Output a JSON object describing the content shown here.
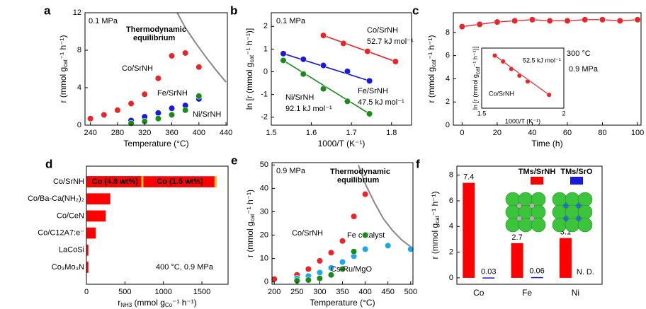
{
  "chart_data": [
    {
      "type": "scatter",
      "panel_label": "a",
      "xlabel": "Temperature (°C)",
      "ylabel": [
        "r (mmol g",
        "cat",
        "⁻¹ h⁻¹)"
      ],
      "xlim": [
        232,
        442
      ],
      "xticks": [
        240,
        280,
        320,
        360,
        400,
        440
      ],
      "ylim": [
        0,
        12
      ],
      "yticks": [
        0,
        4,
        8,
        12
      ],
      "annotations": [
        "0.1 MPa"
      ],
      "series": [
        {
          "name": "Co/SrNH",
          "color": "#e8262a",
          "x": [
            240,
            260,
            280,
            300,
            320,
            340,
            360,
            380,
            400
          ],
          "values": [
            0.7,
            1.1,
            1.6,
            2.3,
            3.3,
            5.0,
            7.4,
            7.7,
            6.2
          ]
        },
        {
          "name": "Fe/SrNH",
          "color": "#1a1adc",
          "x": [
            300,
            320,
            340,
            360,
            380,
            400
          ],
          "values": [
            0.5,
            0.9,
            1.3,
            1.8,
            2.1,
            2.8
          ]
        },
        {
          "name": "Ni/SrNH",
          "color": "#1a8a1a",
          "x": [
            300,
            320,
            340,
            360,
            380,
            400
          ],
          "values": [
            0.2,
            0.4,
            0.7,
            1.1,
            1.6,
            3.1
          ]
        },
        {
          "name": [
            "Thermodynamic",
            "equilibrium"
          ],
          "color": "#888888",
          "curve": true,
          "x": [
            368,
            380,
            395,
            410,
            425,
            440
          ],
          "values": [
            12,
            10.4,
            8.8,
            7.3,
            5.9,
            4.6
          ]
        }
      ]
    },
    {
      "type": "fit",
      "panel_label": "b",
      "xlabel": "1000/T (K⁻¹)",
      "ylabel": [
        "ln [r (mmol g",
        "cat",
        "⁻¹ h⁻¹)]"
      ],
      "xlim": [
        1.5,
        1.85
      ],
      "xticks": [
        1.5,
        1.6,
        1.7,
        1.8
      ],
      "ylim": [
        -2.35,
        2.6
      ],
      "yticks": [
        -2,
        -1,
        0,
        1,
        2
      ],
      "annotations": [
        "0.1 MPa"
      ],
      "series": [
        {
          "name": "Co/SrNH",
          "energy": "52.7 kJ mol⁻¹",
          "color": "#e8262a",
          "x": [
            1.63,
            1.68,
            1.74,
            1.81
          ],
          "values": [
            1.6,
            1.25,
            0.9,
            0.45
          ]
        },
        {
          "name": "Fe/SrNH",
          "energy": "47.5 kJ mol⁻¹",
          "color": "#1a1adc",
          "x": [
            1.53,
            1.58,
            1.63,
            1.69,
            1.745
          ],
          "values": [
            0.8,
            0.55,
            0.28,
            0.02,
            -0.4
          ]
        },
        {
          "name": "Ni/SrNH",
          "energy": "92.1 kJ mol⁻¹",
          "color": "#1a8a1a",
          "x": [
            1.53,
            1.58,
            1.63,
            1.69,
            1.745
          ],
          "values": [
            0.5,
            -0.1,
            -0.75,
            -1.3,
            -1.85
          ]
        }
      ]
    },
    {
      "type": "line",
      "panel_label": "c",
      "xlabel": "Time (h)",
      "ylabel": [
        "r (mmol g",
        "cat",
        "⁻¹ h⁻¹)"
      ],
      "xlim": [
        -5,
        102
      ],
      "xticks": [
        0,
        20,
        40,
        60,
        80,
        100
      ],
      "ylim": [
        0,
        9.7
      ],
      "yticks": [
        0,
        2,
        4,
        6,
        8
      ],
      "annotations": [
        "300 °C",
        "0.9 MPa"
      ],
      "series": [
        {
          "name": "Co/SrNH",
          "color": "#e8262a",
          "x": [
            0,
            10,
            20,
            30,
            40,
            50,
            60,
            70,
            80,
            90,
            100
          ],
          "values": [
            8.5,
            8.7,
            8.9,
            9.0,
            9.1,
            9.0,
            9.0,
            9.1,
            9.1,
            9.0,
            9.1
          ]
        }
      ],
      "inset": {
        "xlabel": "1000/T (K⁻¹)",
        "ylabel": [
          "ln [r (mmol g",
          "cat",
          "⁻¹ h⁻¹)]"
        ],
        "xlim": [
          1.5,
          2.0
        ],
        "xticks": [
          1.5,
          2.0
        ],
        "ylim": [
          0,
          3.6
        ],
        "name": "Co/SrNH",
        "energy": "52.5 kJ mol⁻¹",
        "color": "#e8262a",
        "x": [
          1.58,
          1.63,
          1.68,
          1.73,
          1.78,
          1.91
        ],
        "values": [
          3.15,
          2.8,
          2.35,
          1.95,
          1.6,
          0.8
        ]
      }
    },
    {
      "type": "barh",
      "panel_label": "d",
      "xlabel": [
        "r",
        "NH3",
        " (mmol g",
        "Co",
        "⁻¹ h⁻¹)"
      ],
      "xlim": [
        0,
        1840
      ],
      "xticks": [
        0,
        500,
        1000,
        1500
      ],
      "categories": [
        "Co/SrNH",
        "Co/Ba-Ca(NH₂)₂",
        "Co/CeN",
        "Co/C12A7:e⁻",
        "LaCoSi",
        "Co₃Mo₃N"
      ],
      "annotations": [
        "400 °C, 0.9 MPa"
      ],
      "series": [
        {
          "name": "Co (1.5 wt%)",
          "color": "#ff0000",
          "values": [
            1690,
            310,
            250,
            120,
            25,
            25
          ]
        },
        {
          "name": "Co (4.8 wt%)",
          "color": "#ff0000",
          "values": [
            740,
            null,
            null,
            null,
            null,
            null
          ]
        }
      ]
    },
    {
      "type": "scatter",
      "panel_label": "e",
      "xlabel": "Temperature (°C)",
      "ylabel": [
        "r (mmol g",
        "cat",
        "⁻¹ h⁻¹)"
      ],
      "xlim": [
        195,
        505
      ],
      "xticks": [
        200,
        250,
        300,
        350,
        400,
        450,
        500
      ],
      "ylim": [
        -1,
        51
      ],
      "yticks": [
        0,
        10,
        20,
        30,
        40,
        50
      ],
      "annotations": [
        "0.9 MPa"
      ],
      "series": [
        {
          "name": "Co/SrNH",
          "color": "#e8262a",
          "x": [
            200,
            250,
            275,
            300,
            325,
            350,
            375,
            400
          ],
          "values": [
            1.2,
            3,
            5.5,
            9,
            12.5,
            17.5,
            28,
            37.5
          ]
        },
        {
          "name": "Fe catalyst",
          "color": "#1ea7e8",
          "x": [
            250,
            275,
            300,
            325,
            350,
            375,
            400,
            450,
            500
          ],
          "values": [
            1.5,
            2.5,
            4,
            6,
            8.5,
            11,
            14,
            15.5,
            14
          ]
        },
        {
          "name": "Cs-Ru/MgO",
          "color": "#1a8a1a",
          "x": [
            250,
            275,
            300,
            325,
            350,
            375,
            400
          ],
          "values": [
            0.5,
            0.8,
            1.5,
            3,
            5.5,
            13,
            20
          ]
        },
        {
          "name": [
            "Thermodynamic",
            "equilibrium"
          ],
          "color": "#888888",
          "curve": true,
          "x": [
            385,
            400,
            420,
            440,
            460,
            480,
            500
          ],
          "values": [
            50,
            42,
            34,
            27,
            22,
            18,
            15
          ]
        }
      ]
    },
    {
      "type": "bar",
      "panel_label": "f",
      "ylabel": [
        "r (mmol g",
        "cat",
        "⁻¹ h⁻¹)"
      ],
      "ylim": [
        -0.5,
        8.7
      ],
      "yticks": [
        0,
        2,
        4,
        6,
        8
      ],
      "categories": [
        "Co",
        "Fe",
        "Ni"
      ],
      "series": [
        {
          "name": "TMs/SrNH",
          "color": "#ff0000",
          "values": [
            7.4,
            2.7,
            3.1
          ],
          "value_labels": [
            "7.4",
            "2.7",
            "3.1"
          ]
        },
        {
          "name": "TMs/SrO",
          "color": "#1a1adc",
          "values": [
            0.03,
            0.06,
            null
          ],
          "value_labels": [
            "0.03",
            "0.06",
            "N. D."
          ]
        }
      ]
    }
  ]
}
